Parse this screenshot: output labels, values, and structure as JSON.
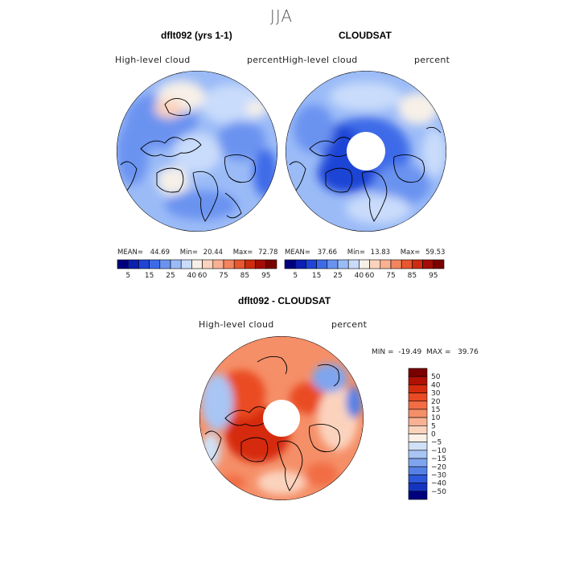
{
  "figure": {
    "season": "JJA",
    "colors": {
      "land": "#000000",
      "pole_hole": "#ffffff"
    }
  },
  "chart_data": [
    {
      "type": "heatmap",
      "projection": "north-polar-stereographic",
      "title": "dflt092 (yrs 1-1)",
      "left_label": "High-level cloud",
      "right_label": "percent",
      "stats": {
        "mean_label": "MEAN=",
        "mean": "44.69",
        "min_label": "Min=",
        "min": "20.44",
        "max_label": "Max=",
        "max": "72.78"
      },
      "colorbar": {
        "orientation": "horizontal",
        "colors": [
          "#00007f",
          "#0b1fb0",
          "#1f44d6",
          "#3d6be8",
          "#6a93f0",
          "#9bbbf7",
          "#c9dcfb",
          "#f7f0e8",
          "#fbd3bd",
          "#f9b093",
          "#f2855d",
          "#e8572f",
          "#cc2c10",
          "#a30d05",
          "#7a0000"
        ],
        "tick_labels": [
          "5",
          "15",
          "25",
          "40",
          "60",
          "75",
          "85",
          "95"
        ]
      }
    },
    {
      "type": "heatmap",
      "projection": "north-polar-stereographic",
      "title": "CLOUDSAT",
      "left_label": "High-level cloud",
      "right_label": "percent",
      "stats": {
        "mean_label": "MEAN=",
        "mean": "37.66",
        "min_label": "Min=",
        "min": "13.83",
        "max_label": "Max=",
        "max": "59.53"
      },
      "colorbar": {
        "orientation": "horizontal",
        "colors": [
          "#00007f",
          "#0b1fb0",
          "#1f44d6",
          "#3d6be8",
          "#6a93f0",
          "#9bbbf7",
          "#c9dcfb",
          "#f7f0e8",
          "#fbd3bd",
          "#f9b093",
          "#f2855d",
          "#e8572f",
          "#cc2c10",
          "#a30d05",
          "#7a0000"
        ],
        "tick_labels": [
          "5",
          "15",
          "25",
          "40",
          "60",
          "75",
          "85",
          "95"
        ]
      }
    },
    {
      "type": "heatmap",
      "projection": "north-polar-stereographic",
      "title": "dflt092 - CLOUDSAT",
      "left_label": "High-level cloud",
      "right_label": "percent",
      "stats_line": "MIN =  -19.49  MAX =   39.76",
      "colorbar": {
        "orientation": "vertical",
        "colors_top_to_bottom": [
          "#7a0000",
          "#b01005",
          "#d52c0e",
          "#ea4b24",
          "#f26d45",
          "#f58f68",
          "#f8b293",
          "#fbd3bd",
          "#fbf0e6",
          "#d0e1f7",
          "#a9c5f4",
          "#7fa5ee",
          "#5581e6",
          "#2c58d9",
          "#1535c0",
          "#00007f"
        ],
        "tick_labels_top_to_bottom": [
          "50",
          "40",
          "30",
          "20",
          "15",
          "10",
          "5",
          "0",
          "−5",
          "−10",
          "−15",
          "−20",
          "−30",
          "−40",
          "−50"
        ]
      }
    }
  ]
}
